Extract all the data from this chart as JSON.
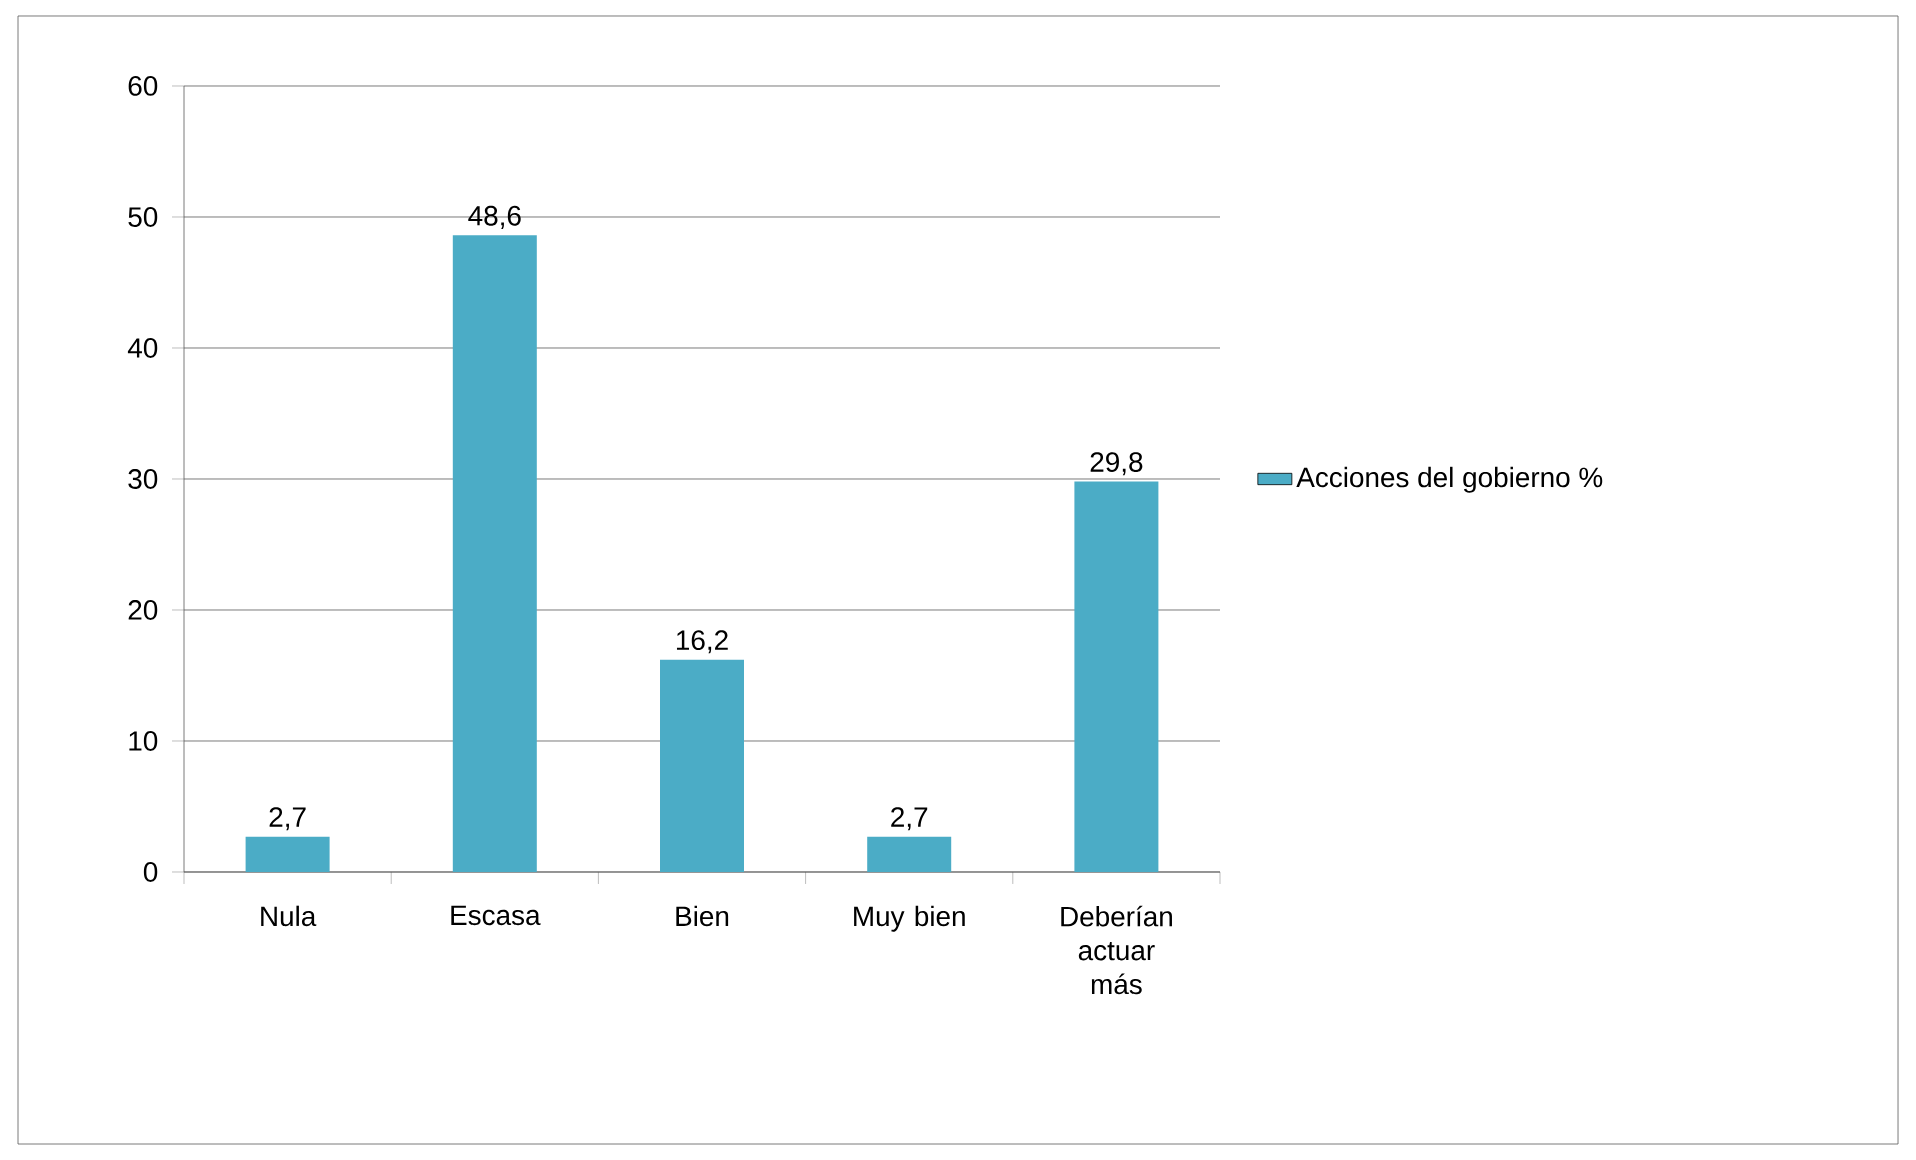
{
  "chart_data": {
    "type": "bar",
    "categories": [
      "Nula",
      "Escasa",
      "Bien",
      "Muy bien",
      "Deberían actuar más"
    ],
    "series": [
      {
        "name": "Acciones del gobierno %",
        "color": "#4bacc6",
        "values": [
          2.7,
          48.6,
          16.2,
          2.7,
          29.8
        ],
        "value_labels": [
          "2,7",
          "48,6",
          "16,2",
          "2,7",
          "29,8"
        ]
      }
    ],
    "ylim": [
      0,
      60
    ],
    "yticks": [
      0,
      10,
      20,
      30,
      40,
      50,
      60
    ],
    "grid": "y",
    "legend": "right"
  }
}
